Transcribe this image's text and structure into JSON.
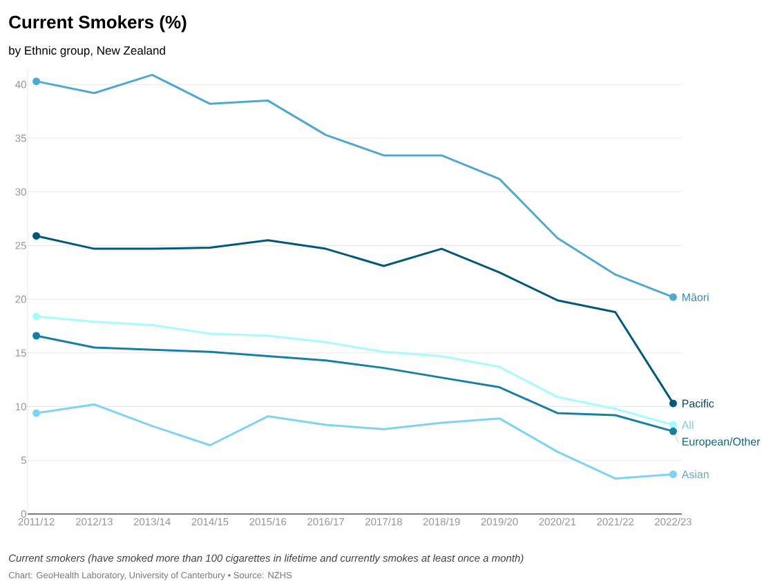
{
  "chart_data": {
    "type": "line",
    "title": "Current Smokers (%)",
    "subtitle": "by Ethnic group, New Zealand",
    "categories": [
      "2011/12",
      "2012/13",
      "2013/14",
      "2014/15",
      "2015/16",
      "2016/17",
      "2017/18",
      "2018/19",
      "2019/20",
      "2020/21",
      "2021/22",
      "2022/23"
    ],
    "series": [
      {
        "name": "Māori",
        "color": "#4fa8cf",
        "values": [
          40.3,
          39.2,
          40.9,
          38.2,
          38.5,
          35.3,
          33.4,
          33.4,
          31.2,
          25.7,
          22.3,
          20.2
        ]
      },
      {
        "name": "Pacific",
        "color": "#00587a",
        "values": [
          25.9,
          24.7,
          24.7,
          24.8,
          25.5,
          24.7,
          23.1,
          24.7,
          22.5,
          19.9,
          18.8,
          10.3
        ]
      },
      {
        "name": "All",
        "color": "#a5fbff",
        "values": [
          18.4,
          17.9,
          17.6,
          16.8,
          16.6,
          16.0,
          15.1,
          14.7,
          13.7,
          10.9,
          9.8,
          8.3
        ]
      },
      {
        "name": "European/Other",
        "color": "#167fa3",
        "values": [
          16.6,
          15.5,
          15.3,
          15.1,
          14.7,
          14.3,
          13.6,
          12.7,
          11.8,
          9.4,
          9.2,
          7.7
        ]
      },
      {
        "name": "Asian",
        "color": "#7dd3f5",
        "values": [
          9.4,
          10.2,
          8.2,
          6.4,
          9.1,
          8.3,
          7.9,
          8.5,
          8.9,
          5.8,
          3.3,
          3.7
        ]
      }
    ],
    "ylim": [
      0,
      41.5
    ],
    "yticks": [
      0,
      5,
      10,
      15,
      20,
      25,
      30,
      35,
      40
    ],
    "grid": "y",
    "legend": false,
    "line_style": "solid",
    "annotations": [
      "Current smokers (have smoked more than 100 cigarettes in lifetime and currently smokes at least once a month)",
      "Chart: GeoHealth Laboratory, University of Canterbury • Source: NZHS"
    ]
  }
}
